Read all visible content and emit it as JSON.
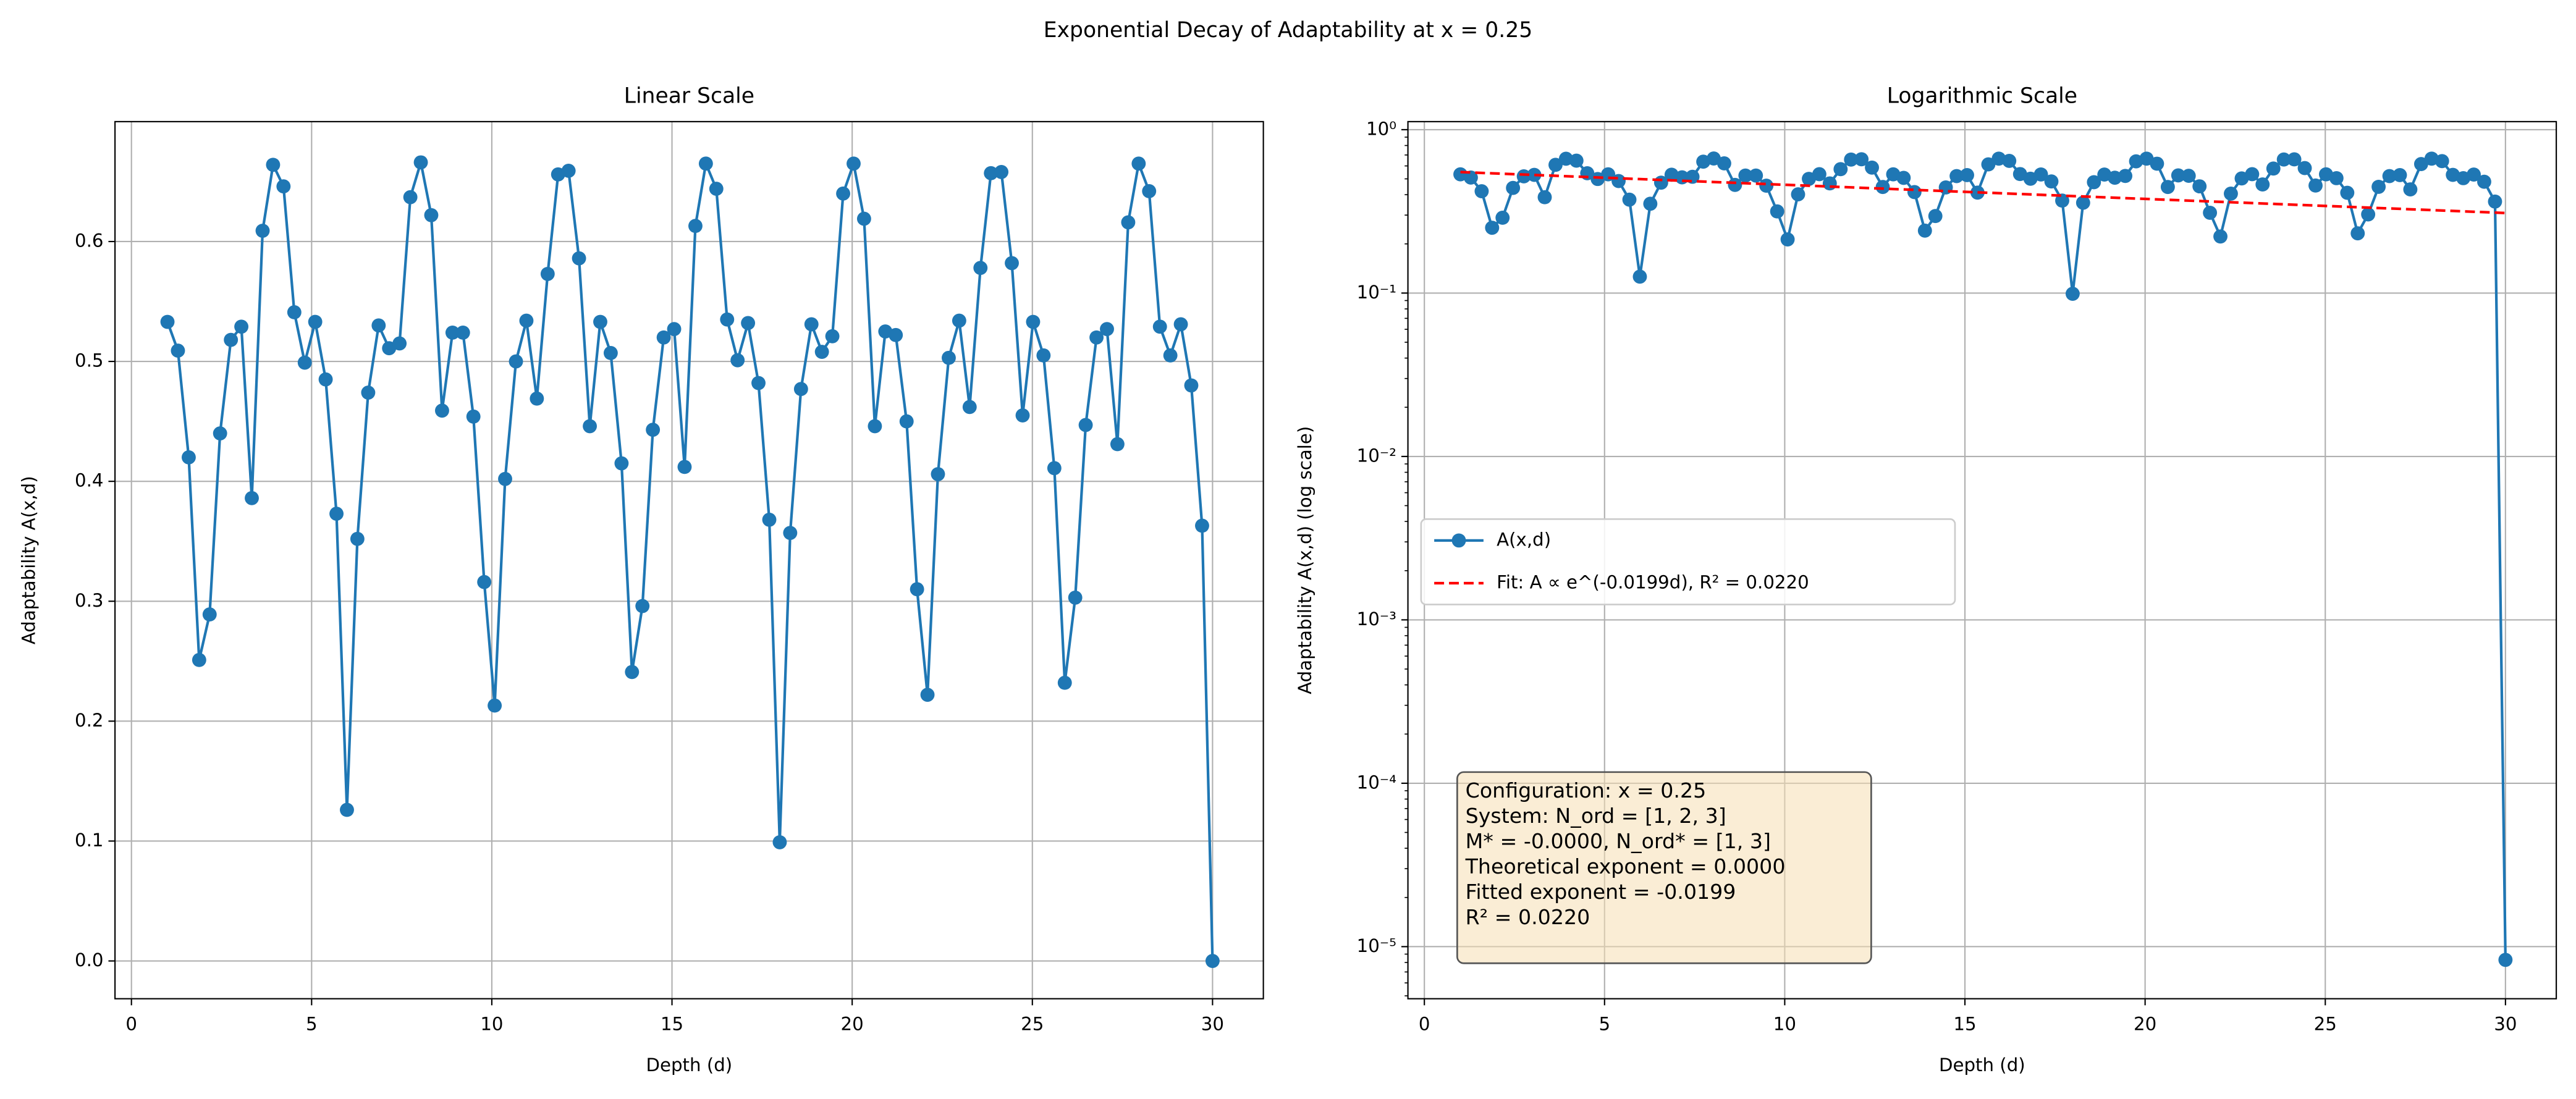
{
  "title": "Exponential Decay of Adaptability at x = 0.25",
  "chart_data": [
    {
      "type": "line",
      "title": "Linear Scale",
      "xlabel": "Depth (d)",
      "ylabel": "Adaptability A(x,d)",
      "log_y": false,
      "grid": true,
      "xlim": [
        -0.456,
        31.41
      ],
      "ylim": [
        -0.0315,
        0.7
      ],
      "xticks": [
        0,
        5,
        10,
        15,
        20,
        25,
        30
      ],
      "yticks": [
        {
          "value": 0,
          "label": "0.0"
        },
        {
          "value": 0.1,
          "label": "0.1"
        },
        {
          "value": 0.2,
          "label": "0.2"
        },
        {
          "value": 0.3,
          "label": "0.3"
        },
        {
          "value": 0.4,
          "label": "0.4"
        },
        {
          "value": 0.5,
          "label": "0.5"
        },
        {
          "value": 0.6,
          "label": "0.6"
        }
      ],
      "x": [
        1.0,
        1.29,
        1.59,
        1.88,
        2.17,
        2.46,
        2.76,
        3.05,
        3.34,
        3.64,
        3.93,
        4.22,
        4.52,
        4.81,
        5.1,
        5.39,
        5.69,
        5.98,
        6.27,
        6.57,
        6.86,
        7.15,
        7.44,
        7.74,
        8.03,
        8.32,
        8.62,
        8.91,
        9.2,
        9.49,
        9.79,
        10.08,
        10.37,
        10.67,
        10.96,
        11.25,
        11.55,
        11.84,
        12.13,
        12.42,
        12.72,
        13.01,
        13.3,
        13.6,
        13.89,
        14.18,
        14.47,
        14.77,
        15.06,
        15.35,
        15.65,
        15.94,
        16.23,
        16.53,
        16.82,
        17.11,
        17.4,
        17.7,
        17.99,
        18.28,
        18.58,
        18.87,
        19.16,
        19.45,
        19.75,
        20.04,
        20.33,
        20.63,
        20.92,
        21.21,
        21.51,
        21.8,
        22.09,
        22.38,
        22.68,
        22.97,
        23.26,
        23.56,
        23.85,
        24.14,
        24.43,
        24.73,
        25.02,
        25.31,
        25.61,
        25.9,
        26.19,
        26.48,
        26.78,
        27.07,
        27.36,
        27.66,
        27.95,
        28.24,
        28.54,
        28.83,
        29.12,
        29.41,
        29.71,
        30.0
      ],
      "series": [
        {
          "name": "A(x,d)",
          "color": "#1f77b4",
          "linestyle": "solid",
          "marker": true,
          "values": [
            0.533,
            0.509,
            0.42,
            0.251,
            0.289,
            0.44,
            0.518,
            0.529,
            0.386,
            0.609,
            0.664,
            0.646,
            0.541,
            0.499,
            0.533,
            0.485,
            0.373,
            0.126,
            0.352,
            0.474,
            0.53,
            0.511,
            0.515,
            0.637,
            0.666,
            0.622,
            0.459,
            0.524,
            0.524,
            0.454,
            0.316,
            0.213,
            0.402,
            0.5,
            0.534,
            0.469,
            0.573,
            0.656,
            0.659,
            0.586,
            0.446,
            0.533,
            0.507,
            0.415,
            0.241,
            0.296,
            0.443,
            0.52,
            0.527,
            0.412,
            0.613,
            0.665,
            0.644,
            0.535,
            0.501,
            0.532,
            0.482,
            0.368,
            0.099,
            0.357,
            0.477,
            0.531,
            0.508,
            0.521,
            0.64,
            0.665,
            0.619,
            0.446,
            0.525,
            0.522,
            0.45,
            0.31,
            0.222,
            0.406,
            0.503,
            0.534,
            0.462,
            0.578,
            0.657,
            0.658,
            0.582,
            0.455,
            0.533,
            0.505,
            0.411,
            0.232,
            0.303,
            0.447,
            0.52,
            0.527,
            0.431,
            0.616,
            0.665,
            0.642,
            0.529,
            0.505,
            0.531,
            0.48,
            0.363,
            8.3e-06
          ]
        }
      ]
    },
    {
      "type": "line",
      "title": "Logarithmic Scale",
      "xlabel": "Depth (d)",
      "ylabel": "Adaptability A(x,d) (log scale)",
      "log_y": true,
      "grid": true,
      "legend": "center left",
      "xlim": [
        -0.456,
        31.41
      ],
      "ylim": [
        4.8e-06,
        1.12
      ],
      "xticks": [
        0,
        5,
        10,
        15,
        20,
        25,
        30
      ],
      "yticks": [
        {
          "value": 1e-05,
          "label": "10⁻⁵"
        },
        {
          "value": 0.0001,
          "label": "10⁻⁴"
        },
        {
          "value": 0.001,
          "label": "10⁻³"
        },
        {
          "value": 0.01,
          "label": "10⁻²"
        },
        {
          "value": 0.1,
          "label": "10⁻¹"
        },
        {
          "value": 1,
          "label": "10⁰"
        }
      ],
      "x": [
        1.0,
        1.29,
        1.59,
        1.88,
        2.17,
        2.46,
        2.76,
        3.05,
        3.34,
        3.64,
        3.93,
        4.22,
        4.52,
        4.81,
        5.1,
        5.39,
        5.69,
        5.98,
        6.27,
        6.57,
        6.86,
        7.15,
        7.44,
        7.74,
        8.03,
        8.32,
        8.62,
        8.91,
        9.2,
        9.49,
        9.79,
        10.08,
        10.37,
        10.67,
        10.96,
        11.25,
        11.55,
        11.84,
        12.13,
        12.42,
        12.72,
        13.01,
        13.3,
        13.6,
        13.89,
        14.18,
        14.47,
        14.77,
        15.06,
        15.35,
        15.65,
        15.94,
        16.23,
        16.53,
        16.82,
        17.11,
        17.4,
        17.7,
        17.99,
        18.28,
        18.58,
        18.87,
        19.16,
        19.45,
        19.75,
        20.04,
        20.33,
        20.63,
        20.92,
        21.21,
        21.51,
        21.8,
        22.09,
        22.38,
        22.68,
        22.97,
        23.26,
        23.56,
        23.85,
        24.14,
        24.43,
        24.73,
        25.02,
        25.31,
        25.61,
        25.9,
        26.19,
        26.48,
        26.78,
        27.07,
        27.36,
        27.66,
        27.95,
        28.24,
        28.54,
        28.83,
        29.12,
        29.41,
        29.71,
        30.0
      ],
      "series": [
        {
          "name": "A(x,d)",
          "color": "#1f77b4",
          "linestyle": "solid",
          "marker": true,
          "values": [
            0.533,
            0.509,
            0.42,
            0.251,
            0.289,
            0.44,
            0.518,
            0.529,
            0.386,
            0.609,
            0.664,
            0.646,
            0.541,
            0.499,
            0.533,
            0.485,
            0.373,
            0.126,
            0.352,
            0.474,
            0.53,
            0.511,
            0.515,
            0.637,
            0.666,
            0.622,
            0.459,
            0.524,
            0.524,
            0.454,
            0.316,
            0.213,
            0.402,
            0.5,
            0.534,
            0.469,
            0.573,
            0.656,
            0.659,
            0.586,
            0.446,
            0.533,
            0.507,
            0.415,
            0.241,
            0.296,
            0.443,
            0.52,
            0.527,
            0.412,
            0.613,
            0.665,
            0.644,
            0.535,
            0.501,
            0.532,
            0.482,
            0.368,
            0.099,
            0.357,
            0.477,
            0.531,
            0.508,
            0.521,
            0.64,
            0.665,
            0.619,
            0.446,
            0.525,
            0.522,
            0.45,
            0.31,
            0.222,
            0.406,
            0.503,
            0.534,
            0.462,
            0.578,
            0.657,
            0.658,
            0.582,
            0.455,
            0.533,
            0.505,
            0.411,
            0.232,
            0.303,
            0.447,
            0.52,
            0.527,
            0.431,
            0.616,
            0.665,
            0.642,
            0.529,
            0.505,
            0.531,
            0.48,
            0.363,
            8.3e-06
          ]
        },
        {
          "name": "Fit: A ∝ e^(-0.0199d), R² = 0.0220",
          "color": "#ff0000",
          "linestyle": "dashed",
          "marker": false,
          "x": [
            1,
            30
          ],
          "values": [
            0.55,
            0.309
          ]
        }
      ],
      "annotation": [
        "Configuration: x = 0.25",
        "System: N_ord = [1, 2, 3]",
        "M* = -0.0000, N_ord* = [1, 3]",
        "Theoretical exponent = 0.0000",
        "Fitted exponent = -0.0199",
        "R² = 0.0220"
      ]
    }
  ]
}
